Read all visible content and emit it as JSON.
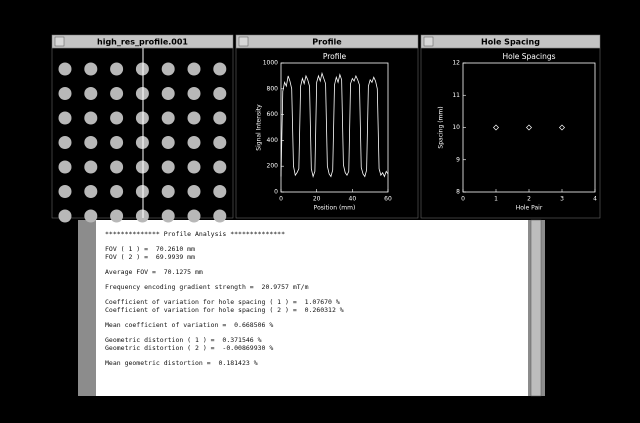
{
  "windows": [
    {
      "title": "high_res_profile.001"
    },
    {
      "title": "Profile",
      "chart": {
        "type": "line",
        "title": "Profile",
        "x_label": "Position (mm)",
        "y_label": "Signal Intensity",
        "x": [
          0,
          1,
          2,
          3,
          4,
          5,
          6,
          7,
          8,
          9,
          10,
          11,
          12,
          13,
          14,
          15,
          16,
          17,
          18,
          19,
          20,
          21,
          22,
          23,
          24,
          25,
          26,
          27,
          28,
          29,
          30,
          31,
          32,
          33,
          34,
          35,
          36,
          37,
          38,
          39,
          40,
          41,
          42,
          43,
          44,
          45,
          46,
          47,
          48,
          49,
          50,
          51,
          52,
          53,
          54,
          55,
          56,
          57,
          58,
          59,
          60
        ],
        "y": [
          120,
          780,
          850,
          820,
          900,
          860,
          800,
          200,
          130,
          150,
          180,
          820,
          880,
          840,
          900,
          870,
          820,
          180,
          120,
          160,
          850,
          900,
          860,
          920,
          880,
          840,
          200,
          140,
          120,
          170,
          830,
          890,
          850,
          910,
          870,
          210,
          150,
          130,
          160,
          840,
          880,
          860,
          900,
          870,
          830,
          190,
          140,
          120,
          170,
          820,
          870,
          850,
          890,
          860,
          800,
          180,
          130,
          150,
          120,
          160,
          140
        ],
        "xlim": [
          0,
          60
        ],
        "ylim": [
          0,
          1000
        ],
        "xticks": [
          0,
          20,
          40,
          60
        ],
        "yticks": [
          0,
          200,
          400,
          600,
          800,
          1000
        ],
        "color": "#ffffff"
      }
    },
    {
      "title": "Hole Spacing",
      "chart": {
        "type": "scatter",
        "title": "Hole Spacings",
        "x_label": "Hole Pair",
        "y_label": "Spacing (mm)",
        "x": [
          1,
          2,
          3
        ],
        "y": [
          10,
          10,
          10
        ],
        "xlim": [
          0,
          4
        ],
        "ylim": [
          8,
          12
        ],
        "xticks": [
          0,
          1,
          2,
          3,
          4
        ],
        "yticks": [
          8,
          9,
          10,
          11,
          12
        ],
        "color": "#ffffff"
      }
    }
  ],
  "report": {
    "groups": [
      [
        "************** Profile Analysis **************"
      ],
      [
        "FOV ( 1 ) =  70.2610 mm",
        "FOV ( 2 ) =  69.9939 mm"
      ],
      [
        "Average FOV =  70.1275 mm"
      ],
      [
        "Frequency encoding gradient strength =  20.9757 mT/m"
      ],
      [
        "Coefficient of variation for hole spacing ( 1 ) =  1.07670 %",
        "Coefficient of variation for hole spacing ( 2 ) =  0.260312 %"
      ],
      [
        "Mean coefficient of variation =  0.668506 %"
      ],
      [
        "Geometric distortion ( 1 ) =  0.371546 %",
        "Geometric distortion ( 2 ) =  -0.00869930 %"
      ],
      [
        "Mean geometric distortion =  0.181423 %"
      ]
    ]
  }
}
